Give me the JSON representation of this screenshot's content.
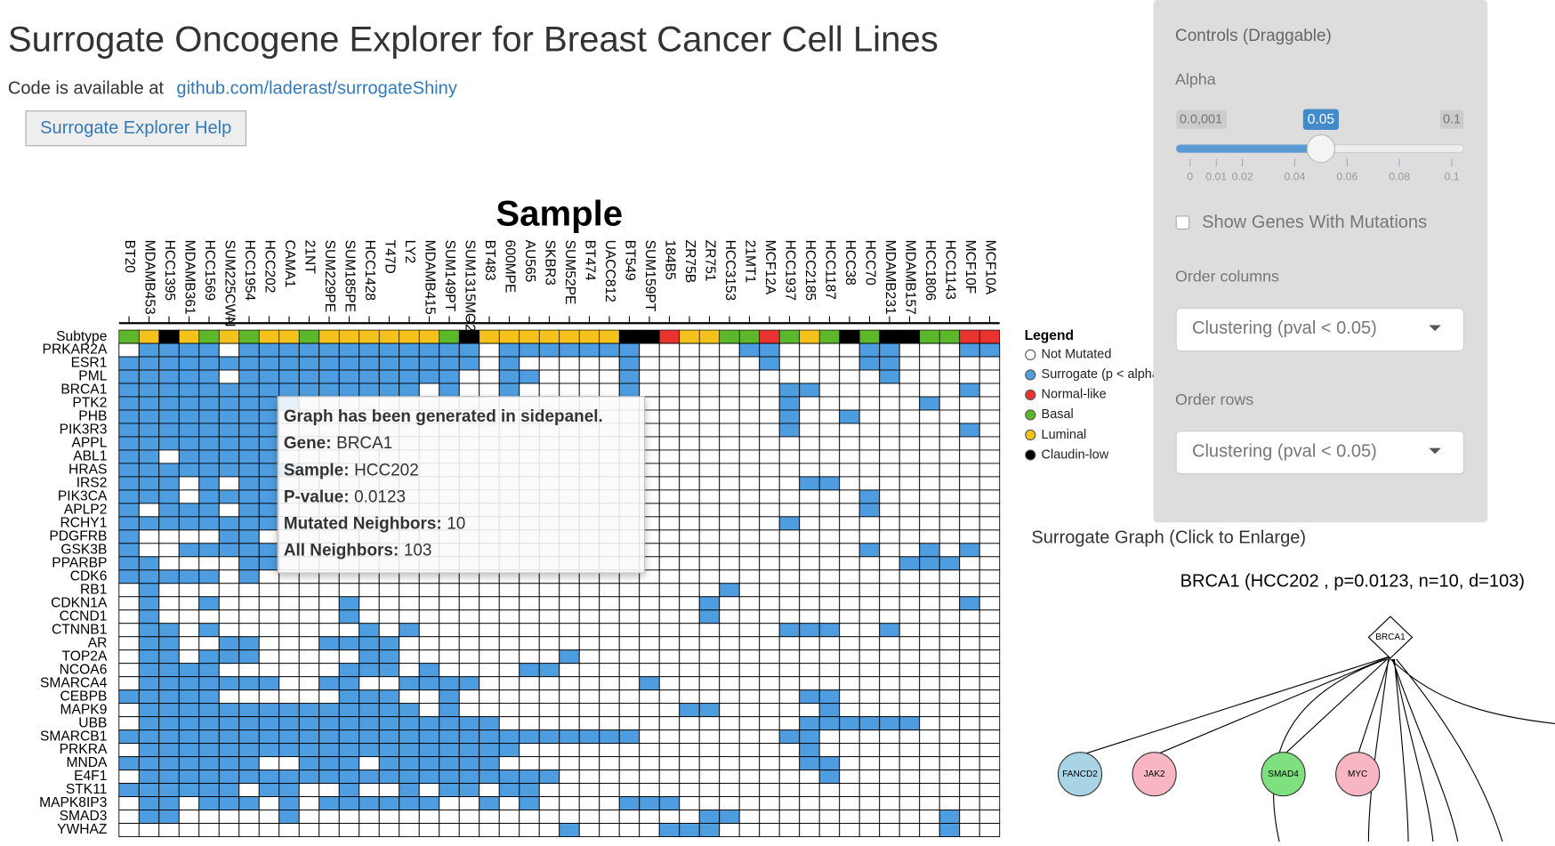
{
  "header": {
    "title": "Surrogate Oncogene Explorer for Breast Cancer Cell Lines",
    "code_text": "Code is available at",
    "link": "github.com/laderast/surrogateShiny",
    "help_button": "Surrogate Explorer Help"
  },
  "heatmap": {
    "title": "Sample",
    "subtype_label": "Subtype",
    "columns": [
      "BT20",
      "MDAMB453",
      "HCC1395",
      "MDAMB361",
      "HCC1569",
      "SUM225CWN",
      "HCC1954",
      "HCC202",
      "CAMA1",
      "21NT",
      "SUM229PE",
      "SUM185PE",
      "HCC1428",
      "T47D",
      "LY2",
      "MDAMB415",
      "SUM149PT",
      "SUM1315MO2",
      "BT483",
      "600MPE",
      "AU565",
      "SKBR3",
      "SUM52PE",
      "BT474",
      "UACC812",
      "BT549",
      "SUM159PT",
      "184B5",
      "ZR75B",
      "ZR751",
      "HCC3153",
      "21MT1",
      "MCF12A",
      "HCC1937",
      "HCC2185",
      "HCC1187",
      "HCC38",
      "HCC70",
      "MDAMB231",
      "MDAMB157",
      "HCC1806",
      "HCC1143",
      "MCF10F",
      "MCF10A"
    ],
    "subtypes": [
      "Basal",
      "Luminal",
      "Claudin-low",
      "Luminal",
      "Basal",
      "Luminal",
      "Basal",
      "Luminal",
      "Luminal",
      "Basal",
      "Luminal",
      "Luminal",
      "Luminal",
      "Luminal",
      "Luminal",
      "Luminal",
      "Basal",
      "Claudin-low",
      "Luminal",
      "Luminal",
      "Luminal",
      "Luminal",
      "Luminal",
      "Luminal",
      "Luminal",
      "Claudin-low",
      "Claudin-low",
      "Normal-like",
      "Luminal",
      "Luminal",
      "Basal",
      "Basal",
      "Normal-like",
      "Basal",
      "Luminal",
      "Basal",
      "Claudin-low",
      "Basal",
      "Claudin-low",
      "Claudin-low",
      "Basal",
      "Basal",
      "Normal-like",
      "Normal-like"
    ],
    "rows": [
      {
        "gene": "PRKAR2A",
        "cells": "01111011111111111101111111000001100001100011"
      },
      {
        "gene": "ESR1",
        "cells": "11111111111111111101000001000000100001100000"
      },
      {
        "gene": "PML",
        "cells": "11111011111111111001100001000000000000100000"
      },
      {
        "gene": "BRCA1",
        "cells": "11111111111111101001000001000000011000000010"
      },
      {
        "gene": "PTK2",
        "cells": "11111111100000000000000000000000010000001000"
      },
      {
        "gene": "PHB",
        "cells": "11111111000000000000000000000000010010000000"
      },
      {
        "gene": "PIK3R3",
        "cells": "11111111000000000000000000000000010000000010"
      },
      {
        "gene": "APPL",
        "cells": "11111111000000000000000000000000000000000000"
      },
      {
        "gene": "ABL1",
        "cells": "11011111000000000000000000000000000000000000"
      },
      {
        "gene": "HRAS",
        "cells": "11111111100000000000000000000000000000000000"
      },
      {
        "gene": "IRS2",
        "cells": "11101011000000000000000000000000001100000000"
      },
      {
        "gene": "PIK3CA",
        "cells": "11101111000000000000000000000000000001000000"
      },
      {
        "gene": "APLP2",
        "cells": "10111011000000000000000000000000000001000000"
      },
      {
        "gene": "RCHY1",
        "cells": "11111111000000000000000000000000010000000000"
      },
      {
        "gene": "PDGFRB",
        "cells": "10000110000000000000000000000000000000000000"
      },
      {
        "gene": "GSK3B",
        "cells": "10011111000000000000000000000000000001001010"
      },
      {
        "gene": "PPARBP",
        "cells": "11000011000000000000000000000000000000011100"
      },
      {
        "gene": "CDK6",
        "cells": "11111010000000000000000000000000000000000000"
      },
      {
        "gene": "RB1",
        "cells": "01000000000000000000000000000010000000000000"
      },
      {
        "gene": "CDKN1A",
        "cells": "01001000000100000000000000000100000000000010"
      },
      {
        "gene": "CCND1",
        "cells": "01000000000100000000000000000100000000000000"
      },
      {
        "gene": "CTNNB1",
        "cells": "01101000000010100000000000000000011100100000"
      },
      {
        "gene": "AR",
        "cells": "01100110001111000000000000000000000000000000"
      },
      {
        "gene": "TOP2A",
        "cells": "01101110000011000000001000000000000000000000"
      },
      {
        "gene": "NCOA6",
        "cells": "01111000000111010000110000000000000000000000"
      },
      {
        "gene": "SMARCA4",
        "cells": "01111111001100111100000000100000000000000000"
      },
      {
        "gene": "CEBPB",
        "cells": "11111000000111001000000000000000001100000000"
      },
      {
        "gene": "MAPK9",
        "cells": "01111111111111101000000000001100000100000000"
      },
      {
        "gene": "UBB",
        "cells": "01111111111111111110000000000000001111110000"
      },
      {
        "gene": "SMARCB1",
        "cells": "11111111111111111111111111000000011000000000"
      },
      {
        "gene": "PRKRA",
        "cells": "01111111111111111111000000000000001000000000"
      },
      {
        "gene": "MNDA",
        "cells": "11111110011101111110000000000000001100000000"
      },
      {
        "gene": "E4F1",
        "cells": "01111111111111111111110000000000000100000000"
      },
      {
        "gene": "STK11",
        "cells": "11111101100100101101100000000000000000000000"
      },
      {
        "gene": "MAPK8IP3",
        "cells": "01101110101111110010100001110000000000000000"
      },
      {
        "gene": "SMAD3",
        "cells": "01100000100000000000000000000110000000000100"
      },
      {
        "gene": "YWHAZ",
        "cells": "00000000000000000000001000011100000000000100"
      }
    ]
  },
  "legend": {
    "title": "Legend",
    "items": [
      {
        "label": "Not Mutated",
        "color": "#ffffff"
      },
      {
        "label": "Surrogate (p < alpha)",
        "color": "#4d9de0"
      },
      {
        "label": "Normal-like",
        "color": "#e8332f"
      },
      {
        "label": "Basal",
        "color": "#5cb82a"
      },
      {
        "label": "Luminal",
        "color": "#f5c21b"
      },
      {
        "label": "Claudin-low",
        "color": "#000000"
      }
    ]
  },
  "tooltip": {
    "header": "Graph has been generated in sidepanel.",
    "fields": [
      {
        "label": "Gene:",
        "value": "BRCA1"
      },
      {
        "label": "Sample:",
        "value": "HCC202"
      },
      {
        "label": "P-value:",
        "value": "0.0123"
      },
      {
        "label": "Mutated Neighbors:",
        "value": "10"
      },
      {
        "label": "All Neighbors:",
        "value": "103"
      }
    ]
  },
  "controls": {
    "title": "Controls (Draggable)",
    "slider": {
      "label": "Alpha",
      "min": 0,
      "max": 0.1,
      "value": 0.05,
      "min_label": "0.0,001",
      "ticks": [
        0,
        0.01,
        0.02,
        0.04,
        0.06,
        0.08,
        0.1
      ]
    },
    "checkbox": "Show Genes With Mutations",
    "order_columns": {
      "label": "Order columns",
      "selected": "Clustering (pval < 0.05)"
    },
    "order_rows": {
      "label": "Order rows",
      "selected": "Clustering (pval < 0.05)"
    }
  },
  "graph": {
    "heading": "Surrogate Graph (Click to Enlarge)",
    "title": "BRCA1 (HCC202 , p=0.0123, n=10, d=103)",
    "center": "BRCA1",
    "nodes": [
      {
        "label": "FANCD2",
        "color": "#a8d4e6"
      },
      {
        "label": "JAK2",
        "color": "#f7b6c2"
      },
      {
        "label": "SMAD4",
        "color": "#7fe07f"
      },
      {
        "label": "MYC",
        "color": "#f7b6c2"
      }
    ]
  }
}
